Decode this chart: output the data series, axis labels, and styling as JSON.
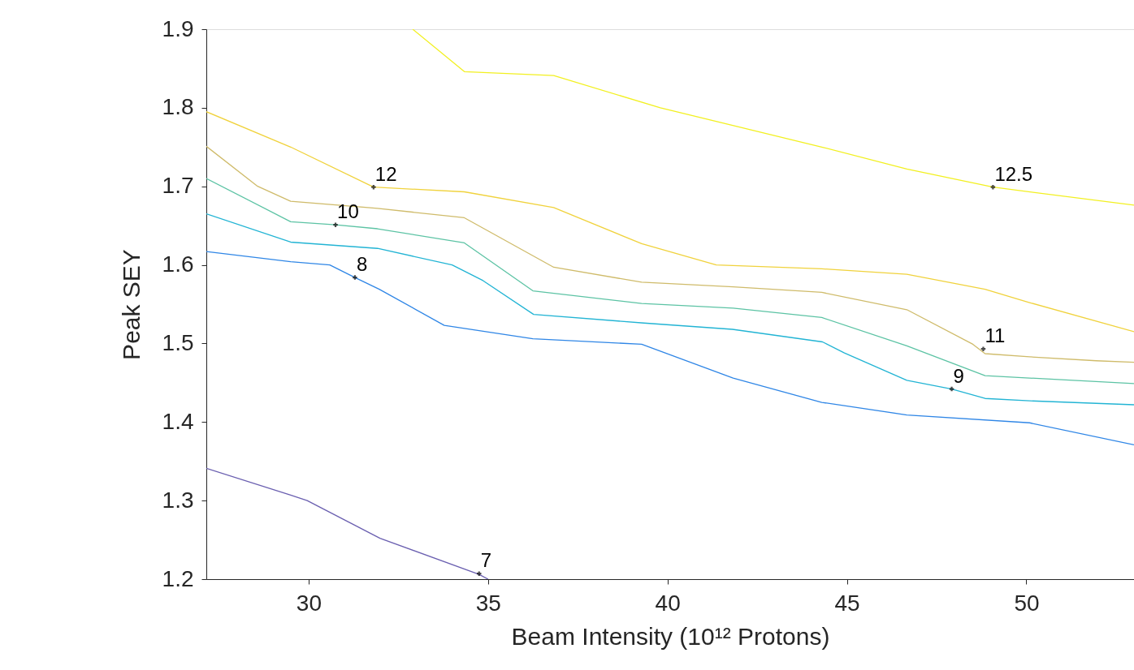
{
  "chart_data": {
    "type": "line",
    "xlabel": "Beam Intensity (10¹² Protons)",
    "ylabel": "Peak SEY",
    "xlim": [
      27.15,
      53
    ],
    "ylim": [
      1.2,
      1.9
    ],
    "xticks": [
      30,
      35,
      40,
      45,
      50
    ],
    "yticks": [
      1.2,
      1.3,
      1.4,
      1.5,
      1.6,
      1.7,
      1.8,
      1.9
    ],
    "grid": false,
    "marker": "none",
    "line_style": "solid",
    "series": [
      {
        "color": "#6a5fb0",
        "x": [
          27.15,
          29.5,
          29.96,
          31.99,
          34.75,
          35.0
        ],
        "values": [
          1.341,
          1.307,
          1.3,
          1.252,
          1.206,
          1.2
        ]
      },
      {
        "color": "#2f86e6",
        "x": [
          27.15,
          29.5,
          30.59,
          31.29,
          31.97,
          33.78,
          36.25,
          39.28,
          41.83,
          44.3,
          46.67,
          50.09,
          53.0
        ],
        "values": [
          1.617,
          1.604,
          1.6,
          1.584,
          1.569,
          1.523,
          1.506,
          1.499,
          1.456,
          1.425,
          1.409,
          1.399,
          1.371
        ]
      },
      {
        "color": "#22b4d4",
        "x": [
          27.15,
          29.5,
          31.92,
          34.0,
          34.86,
          36.27,
          39.34,
          41.81,
          44.32,
          44.93,
          46.67,
          47.92,
          48.85,
          50.09,
          53.0
        ],
        "values": [
          1.665,
          1.629,
          1.621,
          1.6,
          1.58,
          1.537,
          1.526,
          1.518,
          1.502,
          1.488,
          1.453,
          1.442,
          1.43,
          1.427,
          1.422
        ]
      },
      {
        "color": "#5cc3a4",
        "x": [
          27.15,
          29.5,
          30.75,
          31.92,
          34.34,
          36.25,
          39.28,
          41.83,
          44.3,
          46.67,
          48.85,
          50.09,
          53.0
        ],
        "values": [
          1.71,
          1.655,
          1.651,
          1.646,
          1.628,
          1.567,
          1.551,
          1.545,
          1.533,
          1.497,
          1.459,
          1.456,
          1.449
        ]
      },
      {
        "color": "#cfbb6a",
        "x": [
          27.15,
          28.58,
          29.5,
          31.92,
          34.34,
          36.83,
          39.28,
          41.83,
          44.3,
          46.67,
          48.51,
          48.85,
          50.09,
          51.95,
          53.0
        ],
        "values": [
          1.751,
          1.7,
          1.681,
          1.672,
          1.66,
          1.597,
          1.578,
          1.572,
          1.565,
          1.543,
          1.499,
          1.487,
          1.483,
          1.478,
          1.476
        ]
      },
      {
        "color": "#f0d23c",
        "x": [
          27.15,
          29.5,
          31.81,
          34.34,
          36.83,
          39.28,
          41.36,
          44.3,
          46.67,
          48.85,
          50.09,
          53.0
        ],
        "values": [
          1.795,
          1.75,
          1.699,
          1.693,
          1.673,
          1.627,
          1.6,
          1.595,
          1.588,
          1.569,
          1.552,
          1.515
        ]
      },
      {
        "color": "#f2f020",
        "x": [
          32.9,
          34.34,
          36.83,
          39.8,
          44.3,
          46.67,
          49.07,
          53.0
        ],
        "values": [
          1.9,
          1.846,
          1.841,
          1.8,
          1.75,
          1.722,
          1.699,
          1.676
        ]
      }
    ],
    "annotations": [
      {
        "text": "7",
        "x": 34.75,
        "y": 1.207
      },
      {
        "text": "8",
        "x": 31.29,
        "y": 1.584
      },
      {
        "text": "9",
        "x": 47.92,
        "y": 1.442
      },
      {
        "text": "10",
        "x": 30.75,
        "y": 1.651
      },
      {
        "text": "11",
        "x": 48.8,
        "y": 1.493
      },
      {
        "text": "12",
        "x": 31.81,
        "y": 1.699
      },
      {
        "text": "12.5",
        "x": 49.07,
        "y": 1.699
      }
    ]
  }
}
